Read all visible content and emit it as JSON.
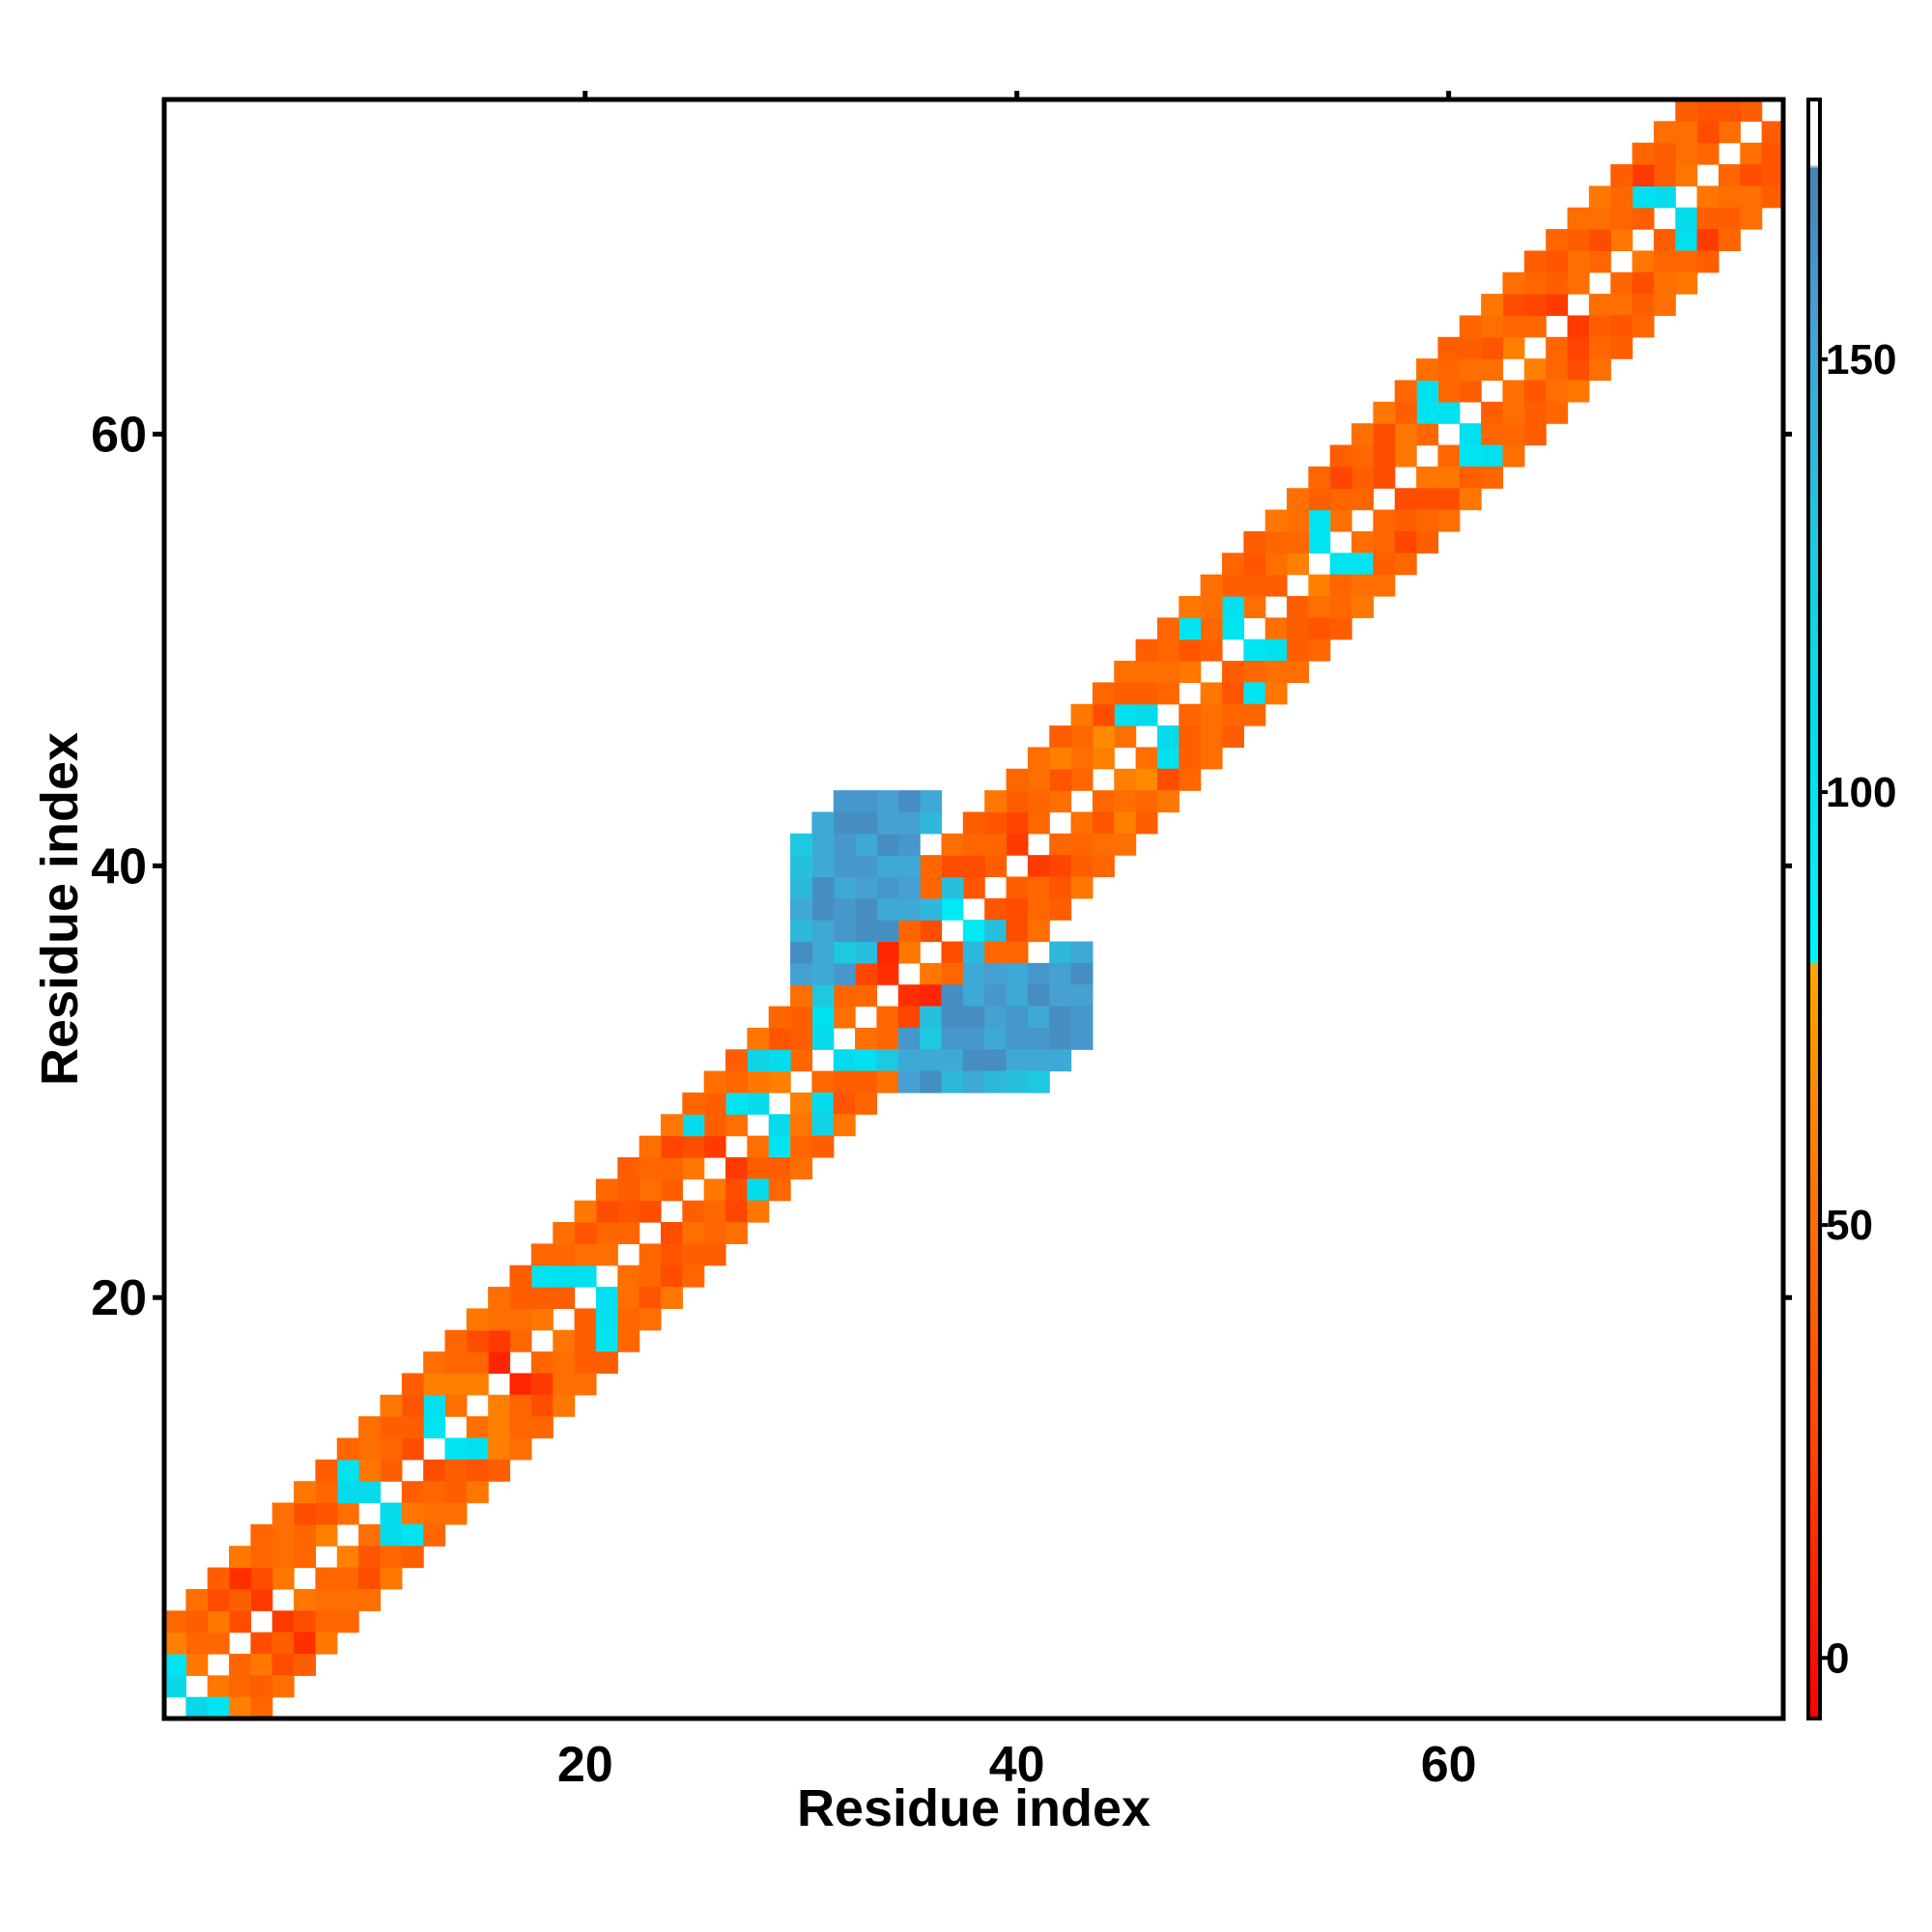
{
  "chart_data": {
    "type": "heatmap",
    "title": "",
    "xlabel": "Residue index",
    "ylabel": "Residue index",
    "xlim": [
      0.5,
      75.5
    ],
    "ylim": [
      0.5,
      75.5
    ],
    "x_ticks": [
      20,
      40,
      60
    ],
    "y_ticks": [
      20,
      40,
      60
    ],
    "x_tick_labels": [
      "20",
      "40",
      "60"
    ],
    "y_tick_labels": [
      "20",
      "40",
      "60"
    ],
    "grid": false,
    "legend": "colorbar-right",
    "colorbar": {
      "range": [
        -7,
        180
      ],
      "ticks": [
        0,
        50,
        100,
        150
      ],
      "tick_labels": [
        "0",
        "50",
        "100",
        "150"
      ],
      "stops": [
        {
          "value": -7,
          "color": "#ff0000"
        },
        {
          "value": 25,
          "color": "#ff4500"
        },
        {
          "value": 50,
          "color": "#ff6e00"
        },
        {
          "value": 80,
          "color": "#ffa500"
        },
        {
          "value": 80.5,
          "color": "#00f5ff"
        },
        {
          "value": 105,
          "color": "#00e0ee"
        },
        {
          "value": 130,
          "color": "#1ec8e0"
        },
        {
          "value": 155,
          "color": "#46a0d4"
        },
        {
          "value": 172,
          "color": "#4682b4"
        },
        {
          "value": 172.5,
          "color": "#ffffff"
        },
        {
          "value": 180,
          "color": "#ffffff"
        }
      ]
    },
    "diagonal_bands": [
      {
        "from": 1,
        "to": 75,
        "offset": 1,
        "values": [
          115,
          55,
          45,
          30,
          20,
          55,
          45,
          60,
          50,
          110,
          40,
          30,
          100,
          50,
          60,
          10,
          45,
          55,
          40,
          105,
          50,
          45,
          30,
          40,
          55,
          20,
          50,
          110,
          60,
          45,
          110,
          50,
          45,
          15,
          55,
          30,
          95,
          35,
          40,
          20,
          45,
          50,
          45,
          60,
          50,
          110,
          45,
          55,
          40,
          100,
          50,
          40,
          60,
          100,
          50,
          45,
          30,
          55,
          45,
          105,
          40,
          50,
          60,
          45,
          20,
          50,
          45,
          55,
          40,
          110,
          55,
          45,
          50,
          40
        ]
      },
      {
        "from": 1,
        "to": 75,
        "offset": 2,
        "values": [
          100,
          45,
          55,
          40,
          30,
          50,
          45,
          35,
          110,
          55,
          45,
          40,
          105,
          60,
          45,
          20,
          50,
          40,
          105,
          50,
          45,
          35,
          50,
          45,
          30,
          40,
          100,
          55,
          110,
          40,
          105,
          45,
          25,
          10,
          45,
          140,
          135,
          30,
          45,
          25,
          45,
          35,
          50,
          65,
          105,
          40,
          50,
          35,
          45,
          105,
          40,
          50,
          45,
          100,
          45,
          40,
          30,
          55,
          100,
          45,
          50,
          35,
          45,
          25,
          40,
          50,
          30,
          45,
          105,
          40,
          50,
          30,
          35
        ]
      },
      {
        "from": 1,
        "to": 75,
        "offset": 3,
        "values": [
          60,
          40,
          30,
          15,
          45,
          50,
          30,
          45,
          100,
          50,
          40,
          35,
          60,
          45,
          30,
          50,
          40,
          100,
          45,
          35,
          30,
          40,
          45,
          25,
          110,
          40,
          45,
          120,
          35,
          40,
          130,
          160,
          135,
          165,
          150,
          45,
          30,
          45,
          35,
          40,
          50,
          60,
          45,
          30,
          40,
          50,
          45,
          100,
          50,
          40,
          35,
          45,
          50,
          40,
          25,
          45,
          30,
          40,
          105,
          45,
          40,
          50,
          30,
          45,
          35,
          40,
          50,
          45,
          20,
          40,
          50,
          35
        ]
      },
      {
        "from": 1,
        "to": 75,
        "offset": 4,
        "values": [
          45,
          50,
          40,
          55,
          45,
          50,
          55,
          40,
          45,
          50,
          55,
          40,
          50,
          45,
          55,
          50,
          40,
          45,
          50,
          55,
          45,
          40,
          50,
          55,
          45,
          50,
          40,
          55,
          45,
          50,
          150,
          130,
          165,
          150,
          155,
          45,
          50,
          40,
          55,
          45,
          50,
          40,
          55,
          45,
          50,
          40,
          45,
          55,
          50,
          45,
          40,
          55,
          50,
          45,
          40,
          50,
          55,
          45,
          50,
          40,
          45,
          55,
          50,
          40,
          45,
          50,
          55,
          40,
          45,
          50,
          40
        ]
      },
      {
        "from": 30,
        "to": 43,
        "offset": 5,
        "values": [
          155,
          150,
          160,
          165,
          160,
          150
        ]
      },
      {
        "from": 30,
        "to": 43,
        "offset": 6,
        "values": [
          165,
          150,
          160,
          155,
          150,
          160,
          140
        ]
      },
      {
        "from": 30,
        "to": 43,
        "offset": 7,
        "values": [
          140,
          165,
          150,
          160,
          165,
          155,
          150,
          130
        ]
      },
      {
        "from": 30,
        "to": 43,
        "offset": 8,
        "values": [
          150,
          165,
          160,
          150,
          155,
          165,
          150,
          140,
          135
        ]
      },
      {
        "from": 30,
        "to": 43,
        "offset": 9,
        "values": [
          140,
          150,
          160,
          165,
          155,
          150,
          160,
          165,
          150,
          130
        ]
      },
      {
        "from": 30,
        "to": 43,
        "offset": 10,
        "values": [
          135,
          150,
          165,
          160,
          155,
          160,
          150,
          140,
          135
        ]
      },
      {
        "from": 30,
        "to": 43,
        "offset": 11,
        "values": [
          130,
          150,
          160,
          165,
          150,
          155,
          145,
          135
        ]
      }
    ]
  }
}
